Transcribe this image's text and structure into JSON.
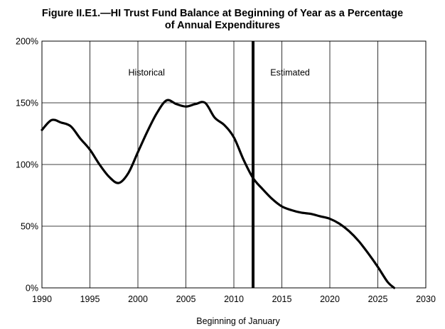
{
  "chart_data": {
    "type": "line",
    "title_line1": "Figure II.E1.—HI Trust Fund Balance at Beginning of Year as a Percentage",
    "title_line2": "of Annual Expenditures",
    "xlabel": "Beginning of January",
    "ylabel": "",
    "xlim": [
      1990,
      2030
    ],
    "ylim": [
      0,
      200
    ],
    "x_ticks": [
      1990,
      1995,
      2000,
      2005,
      2010,
      2015,
      2020,
      2025,
      2030
    ],
    "y_ticks": [
      0,
      50,
      100,
      150,
      200
    ],
    "y_tick_labels": [
      "0%",
      "50%",
      "100%",
      "150%",
      "200%"
    ],
    "grid": true,
    "legend": "none",
    "divider_year": 2012,
    "annotations": [
      {
        "text": "Historical",
        "x": 1999.0,
        "y": 175
      },
      {
        "text": "Estimated",
        "x": 2013.8,
        "y": 175
      }
    ],
    "series": [
      {
        "values_x": [
          1990,
          1991,
          1992,
          1993,
          1994,
          1995,
          1996,
          1997,
          1998,
          1999,
          2000,
          2001,
          2002,
          2003,
          2004,
          2005,
          2006,
          2007,
          2008,
          2009,
          2010,
          2011,
          2012,
          2013,
          2014,
          2015,
          2016,
          2017,
          2018,
          2019,
          2020,
          2021,
          2022,
          2023,
          2024,
          2025,
          2026,
          2026.7
        ],
        "values_y": [
          128,
          136,
          134,
          131,
          121,
          112,
          100,
          90,
          85,
          93,
          110,
          127,
          142,
          152,
          149,
          147,
          149,
          150,
          138,
          132,
          122,
          104,
          89,
          80,
          72,
          66,
          63,
          61,
          60,
          58,
          56,
          52,
          46,
          38,
          28,
          17,
          5,
          0
        ]
      }
    ]
  }
}
